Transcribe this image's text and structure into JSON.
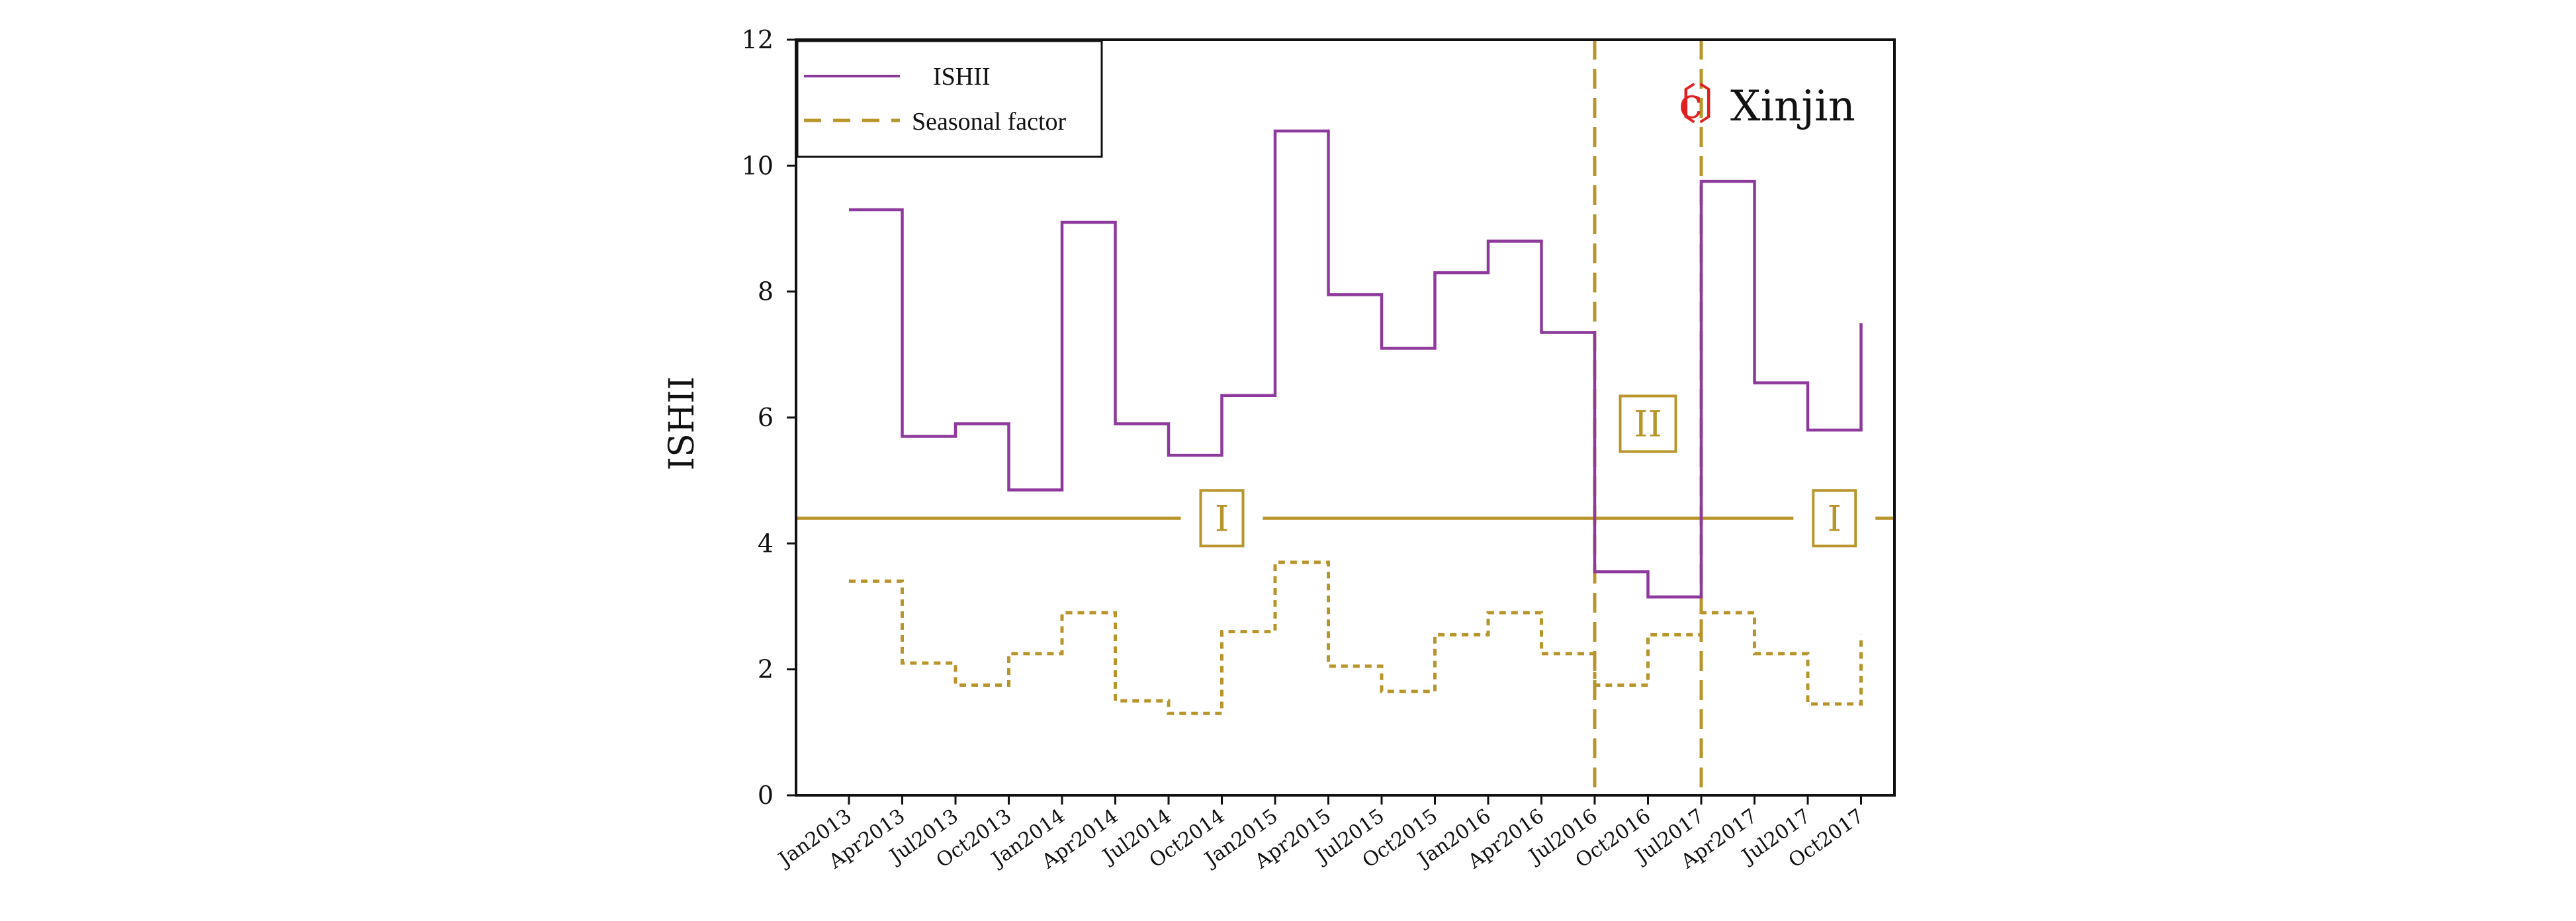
{
  "chart_data": {
    "type": "line",
    "step": true,
    "ylabel": "ISHII",
    "xlabel": "",
    "ylim": [
      0,
      12
    ],
    "yticks": [
      0,
      2,
      4,
      6,
      8,
      10,
      12
    ],
    "categories": [
      "Jan2013",
      "Apr2013",
      "Jul2013",
      "Oct2013",
      "Jan2014",
      "Apr2014",
      "Jul2014",
      "Oct2014",
      "Jan2015",
      "Apr2015",
      "Jul2015",
      "Oct2015",
      "Jan2016",
      "Apr2016",
      "Jul2016",
      "Oct2016",
      "Jul2017",
      "Apr2017",
      "Jul2017",
      "Oct2017"
    ],
    "series": [
      {
        "name": "ISHII",
        "style": "solid",
        "color": "#8e3a9d",
        "values": [
          9.3,
          5.7,
          5.9,
          4.85,
          9.1,
          5.9,
          5.4,
          6.35,
          10.55,
          7.95,
          7.1,
          8.3,
          8.8,
          7.35,
          3.55,
          3.15,
          9.75,
          6.55,
          5.8,
          7.5
        ]
      },
      {
        "name": "Seasonal factor",
        "style": "dashed",
        "color": "#b8952b",
        "values": [
          3.4,
          2.1,
          1.75,
          2.25,
          2.9,
          1.5,
          1.3,
          2.6,
          3.7,
          2.05,
          1.65,
          2.55,
          2.9,
          2.25,
          1.75,
          2.55,
          2.9,
          2.25,
          1.45,
          2.55
        ]
      }
    ],
    "threshold": {
      "value": 4.4,
      "color": "#b8952b"
    },
    "region_lines": [
      "Jul2016",
      "Jul2017"
    ],
    "region_labels": [
      {
        "text": "I",
        "x_index": 7,
        "y": 4.4
      },
      {
        "text": "II",
        "x_index": 15,
        "y": 5.9
      },
      {
        "text": "I",
        "x_index": 18.5,
        "y": 4.4
      }
    ],
    "legend": {
      "position": "top-left",
      "entries": [
        "ISHII",
        "Seasonal factor"
      ]
    },
    "watermark": {
      "symbol": "c",
      "text": "Xinjin"
    }
  }
}
